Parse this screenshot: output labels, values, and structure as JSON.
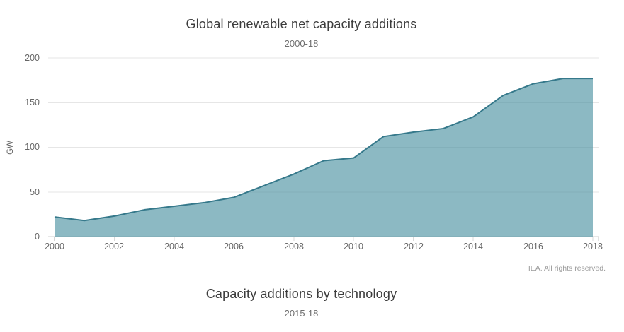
{
  "page": {
    "background": "#ffffff"
  },
  "chart1": {
    "title": "Global renewable net capacity additions",
    "subtitle": "2000-18",
    "y_axis_title": "GW",
    "y_ticks": [
      "0",
      "50",
      "100",
      "150",
      "200"
    ],
    "x_ticks": [
      "2000",
      "2002",
      "2004",
      "2006",
      "2008",
      "2010",
      "2012",
      "2014",
      "2016",
      "2018"
    ],
    "credit": "IEA. All rights reserved."
  },
  "chart2": {
    "title": "Capacity additions by technology",
    "subtitle": "2015-18"
  },
  "chart_data": {
    "type": "area",
    "title": "Global renewable net capacity additions",
    "subtitle": "2000-18",
    "xlabel": "",
    "ylabel": "GW",
    "ylim": [
      0,
      200
    ],
    "grid": true,
    "legend": "none",
    "x": [
      2000,
      2001,
      2002,
      2003,
      2004,
      2005,
      2006,
      2007,
      2008,
      2009,
      2010,
      2011,
      2012,
      2013,
      2014,
      2015,
      2016,
      2017,
      2018
    ],
    "values": [
      22,
      18,
      23,
      30,
      34,
      38,
      44,
      57,
      70,
      85,
      88,
      112,
      117,
      121,
      134,
      158,
      171,
      177,
      177
    ],
    "colors": {
      "line": "#36798b",
      "fill": "rgba(79,147,163,0.65)",
      "grid": "#e6e6e6",
      "axis_line": "#cfcfcf",
      "tick": "#d9d9d9",
      "label": "#666666",
      "title": "#3c3c3c",
      "credit": "#9b9b9b"
    }
  }
}
